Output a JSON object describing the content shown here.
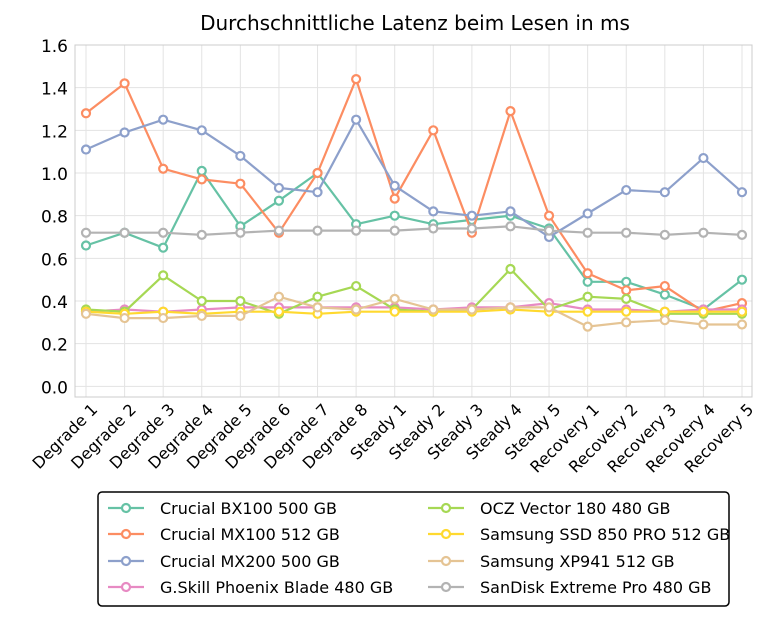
{
  "chart_data": {
    "type": "line",
    "title": "Durchschnittliche Latenz beim Lesen in ms",
    "xlabel": "",
    "ylabel": "",
    "ylim": [
      -0.05,
      1.6
    ],
    "yticks": [
      "0.0",
      "0.2",
      "0.4",
      "0.6",
      "0.8",
      "1.0",
      "1.2",
      "1.4",
      "1.6"
    ],
    "grid": true,
    "legend_position": "bottom",
    "categories": [
      "Degrade 1",
      "Degrade 2",
      "Degrade 3",
      "Degrade 4",
      "Degrade 5",
      "Degrade 6",
      "Degrade 7",
      "Degrade 8",
      "Steady 1",
      "Steady 2",
      "Steady 3",
      "Steady 4",
      "Steady 5",
      "Recovery 1",
      "Recovery 2",
      "Recovery 3",
      "Recovery 4",
      "Recovery 5"
    ],
    "series": [
      {
        "name": "Crucial BX100 500 GB",
        "color": "#66c2a5",
        "values": [
          0.66,
          0.72,
          0.65,
          1.01,
          0.75,
          0.87,
          1.0,
          0.76,
          0.8,
          0.76,
          0.78,
          0.8,
          0.74,
          0.49,
          0.49,
          0.43,
          0.36,
          0.5
        ]
      },
      {
        "name": "Crucial MX100 512 GB",
        "color": "#fc8d62",
        "values": [
          1.28,
          1.42,
          1.02,
          0.97,
          0.95,
          0.72,
          1.0,
          1.44,
          0.88,
          1.2,
          0.72,
          1.29,
          0.8,
          0.53,
          0.45,
          0.47,
          0.35,
          0.39
        ]
      },
      {
        "name": "Crucial MX200 500 GB",
        "color": "#8da0cb",
        "values": [
          1.11,
          1.19,
          1.25,
          1.2,
          1.08,
          0.93,
          0.91,
          1.25,
          0.94,
          0.82,
          0.8,
          0.82,
          0.7,
          0.81,
          0.92,
          0.91,
          1.07,
          0.91
        ]
      },
      {
        "name": "G.Skill Phoenix Blade 480 GB",
        "color": "#e78ac3",
        "values": [
          0.35,
          0.36,
          0.35,
          0.36,
          0.37,
          0.37,
          0.37,
          0.37,
          0.37,
          0.36,
          0.37,
          0.37,
          0.39,
          0.36,
          0.36,
          0.35,
          0.36,
          0.36
        ]
      },
      {
        "name": "OCZ Vector 180 480 GB",
        "color": "#a6d854",
        "values": [
          0.36,
          0.35,
          0.52,
          0.4,
          0.4,
          0.34,
          0.42,
          0.47,
          0.36,
          0.35,
          0.36,
          0.55,
          0.36,
          0.42,
          0.41,
          0.34,
          0.34,
          0.34
        ]
      },
      {
        "name": "Samsung SSD 850 PRO 512 GB",
        "color": "#ffd92f",
        "values": [
          0.35,
          0.34,
          0.35,
          0.34,
          0.35,
          0.35,
          0.34,
          0.35,
          0.35,
          0.35,
          0.35,
          0.36,
          0.35,
          0.35,
          0.35,
          0.35,
          0.35,
          0.35
        ]
      },
      {
        "name": "Samsung XP941 512 GB",
        "color": "#e5c494",
        "values": [
          0.34,
          0.32,
          0.32,
          0.33,
          0.33,
          0.42,
          0.37,
          0.36,
          0.41,
          0.36,
          0.36,
          0.37,
          0.37,
          0.28,
          0.3,
          0.31,
          0.29,
          0.29
        ]
      },
      {
        "name": "SanDisk Extreme Pro 480 GB",
        "color": "#b3b3b3",
        "values": [
          0.72,
          0.72,
          0.72,
          0.71,
          0.72,
          0.73,
          0.73,
          0.73,
          0.73,
          0.74,
          0.74,
          0.75,
          0.73,
          0.72,
          0.72,
          0.71,
          0.72,
          0.71
        ]
      }
    ]
  }
}
